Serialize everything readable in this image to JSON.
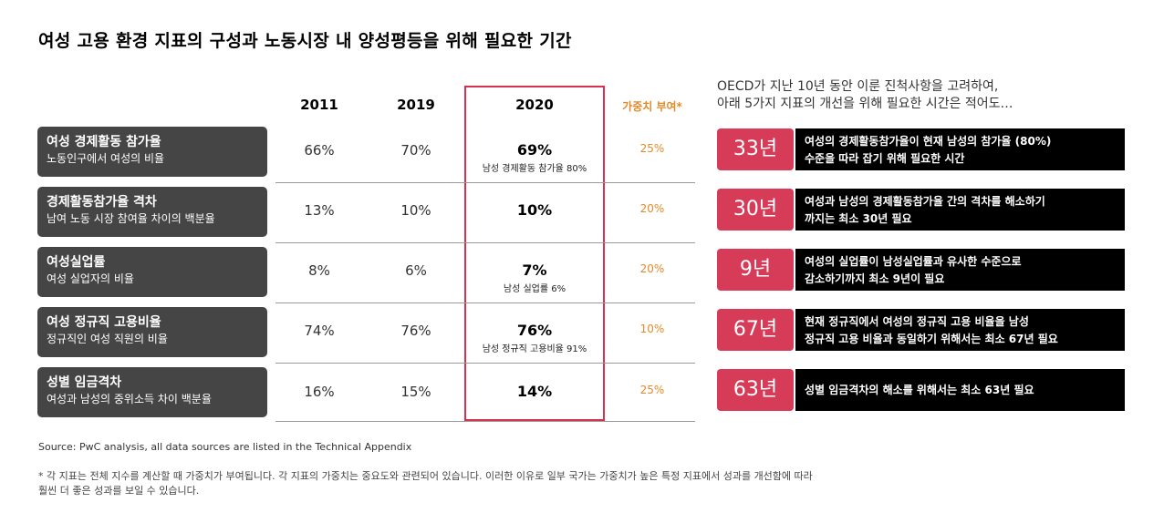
{
  "title": "여성 고용 환경 지표의 구성과  노동시장 내 양성평등을 위해 필요한 기간",
  "columns": {
    "y2011": "2011",
    "y2019": "2019",
    "y2020": "2020",
    "weight": "가중치 부여*"
  },
  "right_note": {
    "line1": "OECD가 지난 10년 동안 이룬 진척사항을 고려하여,",
    "line2": "아래 5가지 지표의 개선을 위해 필요한 시간은 적어도…"
  },
  "rows": [
    {
      "title": "여성 경제활동 참가율",
      "subtitle": "노동인구에서 여성의 비율",
      "v2011": "66%",
      "v2019": "70%",
      "v2020": "69%",
      "v2020_note": "남성 경제활동 참가율 80%",
      "weight": "25%",
      "years": "33년",
      "desc1": "여성의 경제활동참가율이 현재 남성의 참가율 (80%)",
      "desc2": "수준을 따라 잡기 위해 필요한 시간"
    },
    {
      "title": "경제활동참가율 격차",
      "subtitle": "남여 노동 시장 참여율 차이의 백분율",
      "v2011": "13%",
      "v2019": "10%",
      "v2020": "10%",
      "v2020_note": "",
      "weight": "20%",
      "years": "30년",
      "desc1": "여성과 남성의 경제활동참가율 간의 격차를 해소하기",
      "desc2": "까지는 최소 30년 필요"
    },
    {
      "title": "여성실업률",
      "subtitle": "여성 실업자의 비율",
      "v2011": "8%",
      "v2019": "6%",
      "v2020": "7%",
      "v2020_note": "남성 실업률 6%",
      "weight": "20%",
      "years": "9년",
      "desc1": "여성의 실업률이 남성실업률과 유사한 수준으로",
      "desc2": "감소하기까지 최소 9년이 필요"
    },
    {
      "title": "여성 정규직 고용비율",
      "subtitle": "정규직인 여성 직원의 비율",
      "v2011": "74%",
      "v2019": "76%",
      "v2020": "76%",
      "v2020_note": "남성 정규직 고용비율 91%",
      "weight": "10%",
      "years": "67년",
      "desc1": "현재 정규직에서 여성의 정규직 고용 비율을 남성",
      "desc2": "정규직 고용 비율과 동일하기 위해서는 최소 67년 필요"
    },
    {
      "title": "성별 임금격차",
      "subtitle": "여성과 남성의 중위소득 차이 백분율",
      "v2011": "16%",
      "v2019": "15%",
      "v2020": "14%",
      "v2020_note": "",
      "weight": "25%",
      "years": "63년",
      "desc1": "성별 임금격차의 해소를 위해서는 최소 63년 필요",
      "desc2": ""
    }
  ],
  "source": "Source: PwC analysis, all data sources are listed in the Technical Appendix",
  "footnote": {
    "line1": "* 각 지표는 전체 지수를 계산할 때 가중치가 부여됩니다. 각 지표의 가중치는 중요도와 관련되어 있습니다. 이러한 이유로 일부 국가는 가중치가 높은 특정 지표에서 성과를 개선함에 따라",
    "line2": "훨씬 더 좋은 성과를 보일 수 있습니다."
  },
  "colors": {
    "highlight": "#d9304f",
    "years_box": "#d63c58",
    "weight_text": "#e38a2a",
    "label_bg": "#454545"
  }
}
